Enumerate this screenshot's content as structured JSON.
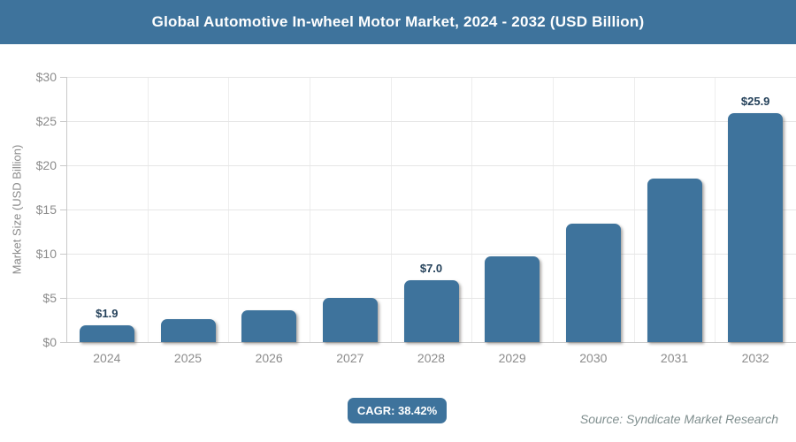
{
  "header": {
    "title": "Global Automotive In-wheel Motor Market, 2024 - 2032 (USD Billion)"
  },
  "chart_data": {
    "type": "bar",
    "title": "Global Automotive In-wheel Motor Market, 2024 - 2032 (USD Billion)",
    "categories": [
      "2024",
      "2025",
      "2026",
      "2027",
      "2028",
      "2029",
      "2030",
      "2031",
      "2032"
    ],
    "values": [
      1.9,
      2.6,
      3.6,
      5.0,
      7.0,
      9.7,
      13.4,
      18.5,
      25.9
    ],
    "data_labels": [
      "$1.9",
      "",
      "",
      "",
      "$7.0",
      "",
      "",
      "",
      "$25.9"
    ],
    "xlabel": "",
    "ylabel": "Market Size (USD Billion)",
    "ylim": [
      0,
      30
    ],
    "yticks": [
      0,
      5,
      10,
      15,
      20,
      25,
      30
    ],
    "ytick_labels": [
      "$0",
      "$5",
      "$10",
      "$15",
      "$20",
      "$25",
      "$30"
    ],
    "grid": true,
    "legend": false,
    "bar_color": "#3E739C"
  },
  "footer": {
    "cagr_badge": "CAGR: 38.42%",
    "source": "Source: Syndicate Market Research"
  },
  "colors": {
    "accent": "#3E739C",
    "value_label": "#24415A",
    "axis_text": "#8C8C8C",
    "gridline": "#E6E6E6",
    "axis_line": "#C9C9C9"
  }
}
